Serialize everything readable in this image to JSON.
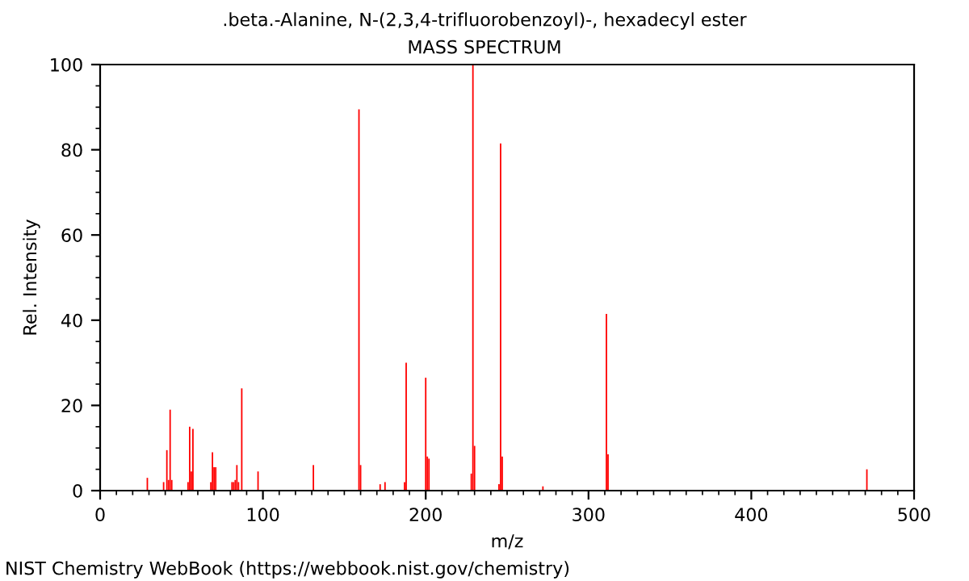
{
  "chart_data": {
    "type": "bar",
    "title": ".beta.-Alanine, N-(2,3,4-trifluorobenzoyl)-, hexadecyl ester",
    "subtitle": "MASS SPECTRUM",
    "xlabel": "m/z",
    "ylabel": "Rel. Intensity",
    "x": [
      29,
      39,
      41,
      42,
      43,
      44,
      54,
      55,
      56,
      57,
      68,
      69,
      70,
      71,
      81,
      82,
      83,
      84,
      85,
      87,
      97,
      131,
      159,
      160,
      172,
      175,
      187,
      188,
      200,
      201,
      202,
      228,
      229,
      230,
      245,
      246,
      247,
      272,
      311,
      312,
      471
    ],
    "values": [
      3,
      2,
      9.5,
      2.5,
      19,
      2.5,
      2,
      15,
      4.5,
      14.5,
      2,
      9,
      5.5,
      5.5,
      2,
      2,
      2.5,
      6,
      2,
      24,
      4.5,
      6,
      89.5,
      6,
      1.5,
      2,
      2,
      30,
      26.5,
      8,
      7.5,
      4,
      100,
      10.5,
      1.5,
      81.5,
      8,
      1,
      41.5,
      8.5,
      5
    ],
    "color": "#ff0000",
    "xlim": [
      0,
      500
    ],
    "xticks": [
      0,
      100,
      200,
      300,
      400,
      500
    ],
    "ylim": [
      0,
      100
    ],
    "yticks": [
      0,
      20,
      40,
      60,
      80,
      100
    ],
    "grid": false,
    "annotations": [
      "NIST Chemistry WebBook (https://webbook.nist.gov/chemistry)"
    ]
  }
}
